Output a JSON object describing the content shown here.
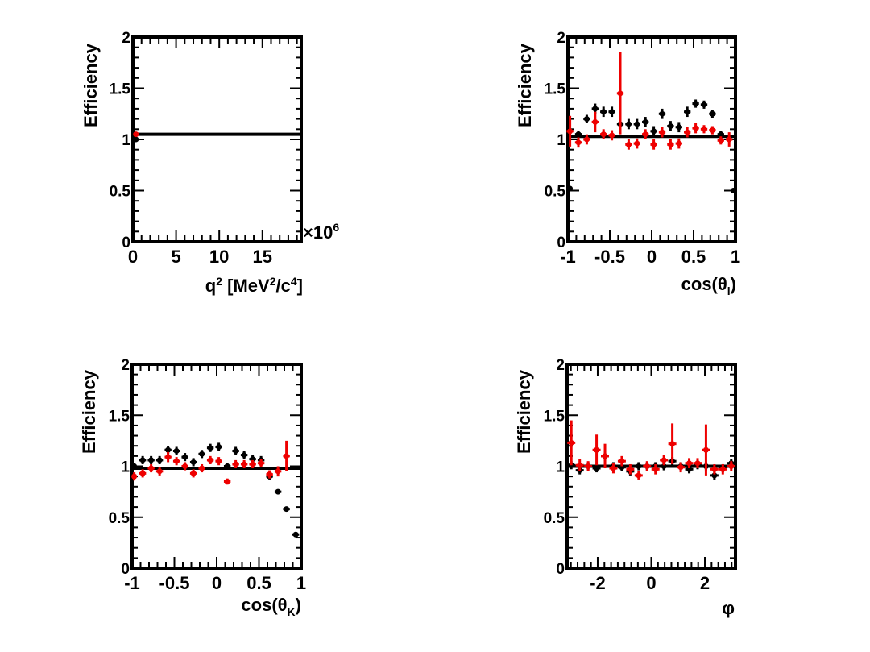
{
  "chart_data": [
    {
      "type": "scatter",
      "id": "q2",
      "title": "",
      "xlabel": "q² [MeV²/c⁴]",
      "xlabel_parts": {
        "base": "q",
        "sup1": "2",
        "mid": " [MeV",
        "sup2": "2",
        "mid2": "/c",
        "sup3": "4",
        "end": "]"
      },
      "ylabel": "Efficiency",
      "xlim": [
        0,
        19.5
      ],
      "ylim": [
        0,
        2
      ],
      "x_multiplier": "×10",
      "x_multiplier_exp": "6",
      "xticks": [
        0,
        5,
        10,
        15
      ],
      "xtick_labels": [
        "0",
        "5",
        "10",
        "15"
      ],
      "yticks": [
        0,
        0.5,
        1,
        1.5,
        2
      ],
      "ytick_labels": [
        "0",
        "0.5",
        "1",
        "1.5",
        "2"
      ],
      "reference_line": 1.05,
      "series": [
        {
          "name": "black",
          "color": "#000000",
          "points": [
            [
              0.35,
              1.0,
              0.25,
              0.02
            ]
          ]
        },
        {
          "name": "red",
          "color": "#ee0000",
          "points": [
            [
              0.35,
              1.05,
              0.25,
              0.02
            ]
          ]
        }
      ]
    },
    {
      "type": "scatter",
      "id": "costhetal",
      "title": "",
      "xlabel": "cos(θl)",
      "xlabel_parts": {
        "base": "cos(θ",
        "sub": "l",
        "end": ")"
      },
      "ylabel": "Efficiency",
      "xlim": [
        -1,
        1
      ],
      "ylim": [
        0,
        2
      ],
      "xticks": [
        -1,
        -0.5,
        0,
        0.5,
        1
      ],
      "xtick_labels": [
        "-1",
        "-0.5",
        "0",
        "0.5",
        "1"
      ],
      "yticks": [
        0,
        0.5,
        1,
        1.5,
        2
      ],
      "ytick_labels": [
        "0",
        "0.5",
        "1",
        "1.5",
        "2"
      ],
      "reference_line": 1.03,
      "series": [
        {
          "name": "black",
          "color": "#000000",
          "points": [
            [
              -0.975,
              0.52,
              0.025,
              0.01
            ],
            [
              -0.875,
              1.05,
              0.04,
              0.03
            ],
            [
              -0.775,
              1.2,
              0.04,
              0.04
            ],
            [
              -0.675,
              1.3,
              0.04,
              0.05
            ],
            [
              -0.575,
              1.27,
              0.04,
              0.05
            ],
            [
              -0.475,
              1.27,
              0.04,
              0.05
            ],
            [
              -0.375,
              1.15,
              0.04,
              0.05
            ],
            [
              -0.275,
              1.15,
              0.04,
              0.05
            ],
            [
              -0.175,
              1.15,
              0.04,
              0.05
            ],
            [
              -0.075,
              1.17,
              0.04,
              0.05
            ],
            [
              0.025,
              1.08,
              0.04,
              0.05
            ],
            [
              0.125,
              1.25,
              0.04,
              0.05
            ],
            [
              0.225,
              1.13,
              0.04,
              0.05
            ],
            [
              0.325,
              1.12,
              0.04,
              0.05
            ],
            [
              0.425,
              1.27,
              0.04,
              0.05
            ],
            [
              0.525,
              1.35,
              0.04,
              0.04
            ],
            [
              0.625,
              1.34,
              0.04,
              0.04
            ],
            [
              0.725,
              1.25,
              0.04,
              0.04
            ],
            [
              0.825,
              1.05,
              0.04,
              0.03
            ],
            [
              0.975,
              0.5,
              0.025,
              0.01
            ]
          ]
        },
        {
          "name": "red",
          "color": "#ee0000",
          "points": [
            [
              -0.975,
              1.08,
              0.04,
              0.15
            ],
            [
              -0.875,
              0.97,
              0.04,
              0.05
            ],
            [
              -0.775,
              1.0,
              0.04,
              0.05
            ],
            [
              -0.675,
              1.17,
              0.04,
              0.1
            ],
            [
              -0.575,
              1.05,
              0.04,
              0.05
            ],
            [
              -0.475,
              1.04,
              0.04,
              0.05
            ],
            [
              -0.375,
              1.45,
              0.04,
              0.4
            ],
            [
              -0.275,
              0.95,
              0.04,
              0.05
            ],
            [
              -0.175,
              0.96,
              0.04,
              0.05
            ],
            [
              -0.075,
              1.05,
              0.04,
              0.05
            ],
            [
              0.025,
              0.95,
              0.04,
              0.05
            ],
            [
              0.125,
              1.07,
              0.04,
              0.05
            ],
            [
              0.225,
              0.95,
              0.04,
              0.05
            ],
            [
              0.325,
              0.96,
              0.04,
              0.05
            ],
            [
              0.425,
              1.07,
              0.04,
              0.05
            ],
            [
              0.525,
              1.11,
              0.04,
              0.05
            ],
            [
              0.625,
              1.1,
              0.04,
              0.04
            ],
            [
              0.725,
              1.09,
              0.04,
              0.04
            ],
            [
              0.825,
              0.99,
              0.04,
              0.04
            ],
            [
              0.925,
              1.0,
              0.04,
              0.07
            ]
          ]
        }
      ]
    },
    {
      "type": "scatter",
      "id": "costhetak",
      "title": "",
      "xlabel": "cos(θK)",
      "xlabel_parts": {
        "base": "cos(θ",
        "sub": "K",
        "end": ")"
      },
      "ylabel": "Efficiency",
      "xlim": [
        -1,
        1
      ],
      "ylim": [
        0,
        2
      ],
      "xticks": [
        -1,
        -0.5,
        0,
        0.5,
        1
      ],
      "xtick_labels": [
        "-1",
        "-0.5",
        "0",
        "0.5",
        "1"
      ],
      "yticks": [
        0,
        0.5,
        1,
        1.5,
        2
      ],
      "ytick_labels": [
        "0",
        "0.5",
        "1",
        "1.5",
        "2"
      ],
      "reference_line": 0.98,
      "series": [
        {
          "name": "black",
          "color": "#000000",
          "points": [
            [
              -0.975,
              1.0,
              0.025,
              0.03
            ],
            [
              -0.875,
              1.06,
              0.04,
              0.04
            ],
            [
              -0.775,
              1.06,
              0.04,
              0.04
            ],
            [
              -0.675,
              1.06,
              0.04,
              0.04
            ],
            [
              -0.575,
              1.16,
              0.04,
              0.04
            ],
            [
              -0.475,
              1.15,
              0.04,
              0.04
            ],
            [
              -0.375,
              1.09,
              0.04,
              0.04
            ],
            [
              -0.275,
              1.04,
              0.04,
              0.04
            ],
            [
              -0.175,
              1.12,
              0.04,
              0.04
            ],
            [
              -0.075,
              1.18,
              0.04,
              0.04
            ],
            [
              0.025,
              1.19,
              0.04,
              0.04
            ],
            [
              0.125,
              1.0,
              0.04,
              0.03
            ],
            [
              0.225,
              1.15,
              0.04,
              0.04
            ],
            [
              0.325,
              1.11,
              0.04,
              0.04
            ],
            [
              0.425,
              1.07,
              0.04,
              0.04
            ],
            [
              0.525,
              1.06,
              0.04,
              0.04
            ],
            [
              0.625,
              0.9,
              0.04,
              0.03
            ],
            [
              0.725,
              0.75,
              0.04,
              0.02
            ],
            [
              0.825,
              0.58,
              0.04,
              0.02
            ],
            [
              0.935,
              0.33,
              0.04,
              0.01
            ]
          ]
        },
        {
          "name": "red",
          "color": "#ee0000",
          "points": [
            [
              -0.975,
              0.9,
              0.025,
              0.04
            ],
            [
              -0.875,
              0.93,
              0.04,
              0.04
            ],
            [
              -0.775,
              0.98,
              0.04,
              0.04
            ],
            [
              -0.675,
              0.95,
              0.04,
              0.04
            ],
            [
              -0.575,
              1.09,
              0.04,
              0.05
            ],
            [
              -0.475,
              1.05,
              0.04,
              0.04
            ],
            [
              -0.375,
              1.0,
              0.04,
              0.04
            ],
            [
              -0.275,
              0.93,
              0.04,
              0.04
            ],
            [
              -0.175,
              0.98,
              0.04,
              0.04
            ],
            [
              -0.075,
              1.06,
              0.04,
              0.04
            ],
            [
              0.025,
              1.05,
              0.04,
              0.04
            ],
            [
              0.125,
              0.85,
              0.04,
              0.03
            ],
            [
              0.225,
              1.02,
              0.04,
              0.04
            ],
            [
              0.325,
              1.02,
              0.04,
              0.04
            ],
            [
              0.425,
              1.02,
              0.04,
              0.04
            ],
            [
              0.525,
              1.03,
              0.04,
              0.04
            ],
            [
              0.625,
              0.92,
              0.04,
              0.04
            ],
            [
              0.725,
              0.95,
              0.04,
              0.05
            ],
            [
              0.825,
              1.1,
              0.04,
              0.15
            ]
          ]
        }
      ]
    },
    {
      "type": "scatter",
      "id": "phi",
      "title": "",
      "xlabel": "φ",
      "xlabel_parts": {
        "base": "φ"
      },
      "ylabel": "Efficiency",
      "xlim": [
        -3.1416,
        3.1416
      ],
      "ylim": [
        0,
        2
      ],
      "xticks": [
        -2,
        0,
        2
      ],
      "xtick_labels": [
        "-2",
        "0",
        "2"
      ],
      "yticks": [
        0,
        0.5,
        1,
        1.5,
        2
      ],
      "ytick_labels": [
        "0",
        "0.5",
        "1",
        "1.5",
        "2"
      ],
      "reference_line": 1.0,
      "series": [
        {
          "name": "black",
          "color": "#000000",
          "points": [
            [
              -2.985,
              1.01,
              0.15,
              0.04
            ],
            [
              -2.67,
              0.96,
              0.15,
              0.04
            ],
            [
              -2.356,
              1.0,
              0.15,
              0.04
            ],
            [
              -2.042,
              0.98,
              0.15,
              0.04
            ],
            [
              -1.728,
              1.1,
              0.15,
              0.05
            ],
            [
              -1.414,
              1.0,
              0.15,
              0.04
            ],
            [
              -1.1,
              0.99,
              0.15,
              0.04
            ],
            [
              -0.785,
              0.95,
              0.15,
              0.04
            ],
            [
              -0.471,
              1.0,
              0.15,
              0.04
            ],
            [
              -0.157,
              1.0,
              0.15,
              0.04
            ],
            [
              0.157,
              1.0,
              0.15,
              0.04
            ],
            [
              0.471,
              1.0,
              0.15,
              0.04
            ],
            [
              0.785,
              1.05,
              0.15,
              0.04
            ],
            [
              1.1,
              1.0,
              0.15,
              0.04
            ],
            [
              1.414,
              0.97,
              0.15,
              0.04
            ],
            [
              1.728,
              1.01,
              0.15,
              0.04
            ],
            [
              2.042,
              1.0,
              0.15,
              0.04
            ],
            [
              2.356,
              0.91,
              0.15,
              0.04
            ],
            [
              2.67,
              0.98,
              0.15,
              0.04
            ],
            [
              2.985,
              1.03,
              0.15,
              0.04
            ]
          ]
        },
        {
          "name": "red",
          "color": "#ee0000",
          "points": [
            [
              -2.985,
              1.23,
              0.15,
              0.22
            ],
            [
              -2.67,
              1.01,
              0.15,
              0.06
            ],
            [
              -2.356,
              1.0,
              0.15,
              0.05
            ],
            [
              -2.042,
              1.16,
              0.15,
              0.15
            ],
            [
              -1.728,
              1.1,
              0.15,
              0.12
            ],
            [
              -1.414,
              0.98,
              0.15,
              0.05
            ],
            [
              -1.1,
              1.05,
              0.15,
              0.05
            ],
            [
              -0.785,
              0.97,
              0.15,
              0.05
            ],
            [
              -0.471,
              0.91,
              0.15,
              0.04
            ],
            [
              -0.157,
              1.0,
              0.15,
              0.05
            ],
            [
              0.157,
              0.97,
              0.15,
              0.05
            ],
            [
              0.471,
              1.06,
              0.15,
              0.05
            ],
            [
              0.785,
              1.22,
              0.15,
              0.2
            ],
            [
              1.1,
              0.99,
              0.15,
              0.05
            ],
            [
              1.414,
              1.03,
              0.15,
              0.05
            ],
            [
              1.728,
              1.03,
              0.15,
              0.05
            ],
            [
              2.042,
              1.16,
              0.15,
              0.25
            ],
            [
              2.356,
              0.97,
              0.15,
              0.05
            ],
            [
              2.67,
              0.97,
              0.15,
              0.05
            ],
            [
              2.985,
              1.0,
              0.15,
              0.05
            ]
          ]
        }
      ]
    }
  ]
}
